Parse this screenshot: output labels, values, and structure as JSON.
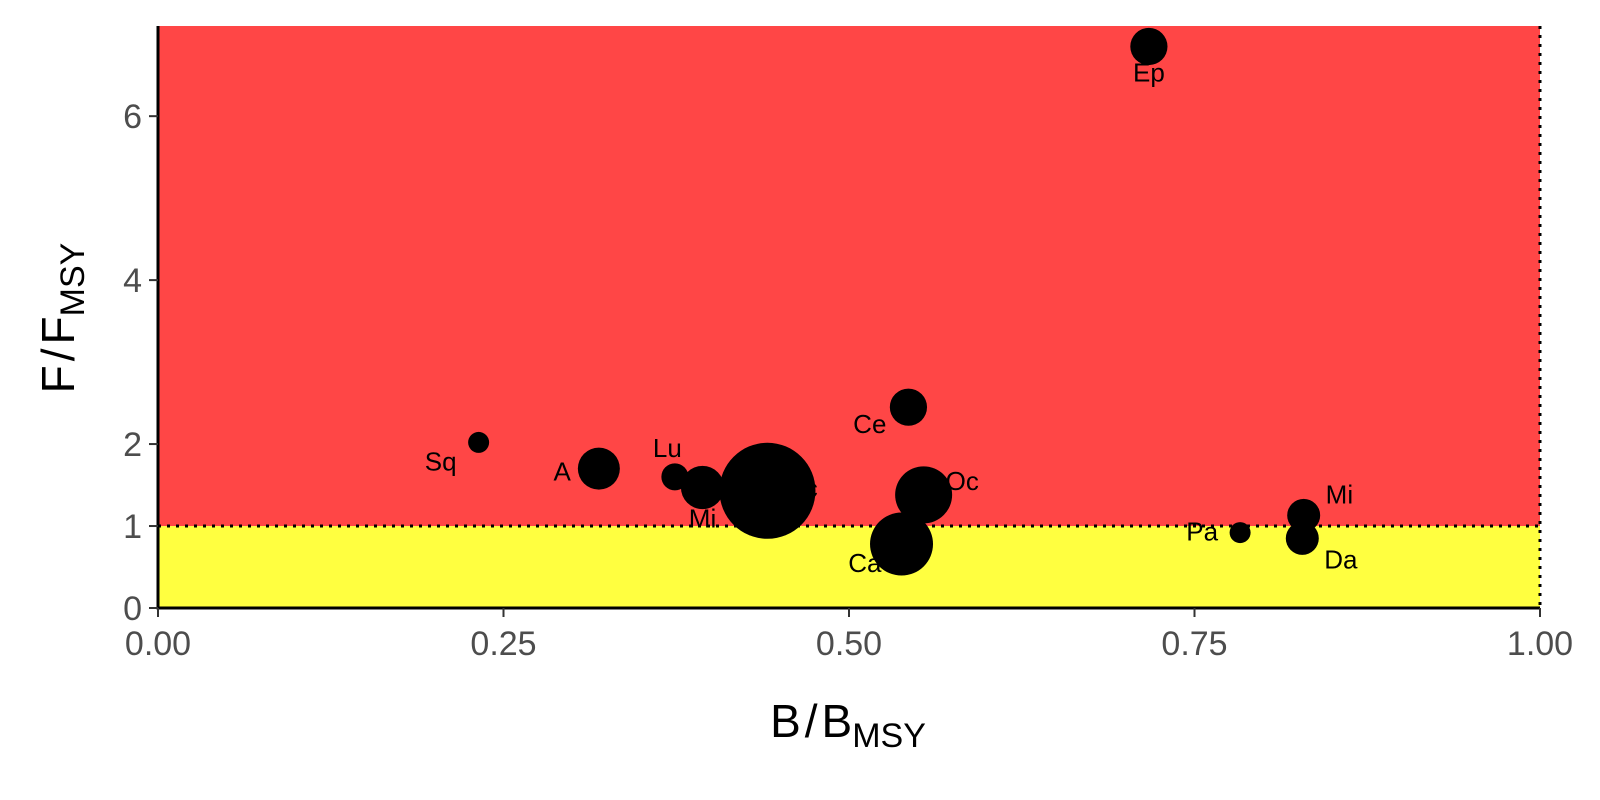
{
  "chart_data": {
    "type": "scatter",
    "title": "",
    "xlabel": {
      "main": "B",
      "sub": "MSY"
    },
    "ylabel": {
      "main": "F",
      "sub": "MSY"
    },
    "xlim": [
      0,
      1
    ],
    "ylim": [
      0,
      7.1
    ],
    "x_ticks": [
      "0.00",
      "0.25",
      "0.50",
      "0.75",
      "1.00"
    ],
    "y_ticks": [
      "0",
      "1",
      "2",
      "4",
      "6"
    ],
    "grid": false,
    "regions": [
      {
        "y_from": 0,
        "y_to": 1,
        "color": "#ffff40"
      },
      {
        "y_from": 1,
        "y_to": 7.1,
        "color": "#ff4646"
      }
    ],
    "reference_lines": {
      "y": 1,
      "x": 1,
      "style": "dotted"
    },
    "point_color": "#000000",
    "points": [
      {
        "label": "Ep",
        "x": 0.717,
        "y": 6.85,
        "size": 0.62
      },
      {
        "label": "Sq",
        "x": 0.232,
        "y": 2.02,
        "size": 0.35
      },
      {
        "label": "A",
        "x": 0.319,
        "y": 1.7,
        "size": 0.7
      },
      {
        "label": "Lu",
        "x": 0.374,
        "y": 1.6,
        "size": 0.45
      },
      {
        "label": "Mi",
        "x": 0.394,
        "y": 1.47,
        "size": 0.72
      },
      {
        "label": "Ec",
        "x": 0.441,
        "y": 1.43,
        "size": 1.6
      },
      {
        "label": "Ce",
        "x": 0.543,
        "y": 2.45,
        "size": 0.62
      },
      {
        "label": "Oc",
        "x": 0.554,
        "y": 1.38,
        "size": 0.95
      },
      {
        "label": "Ca",
        "x": 0.538,
        "y": 0.78,
        "size": 1.05
      },
      {
        "label": "Pa",
        "x": 0.783,
        "y": 0.92,
        "size": 0.35
      },
      {
        "label": "Mi",
        "x": 0.829,
        "y": 1.13,
        "size": 0.55
      },
      {
        "label": "Da",
        "x": 0.828,
        "y": 0.85,
        "size": 0.55
      }
    ]
  }
}
